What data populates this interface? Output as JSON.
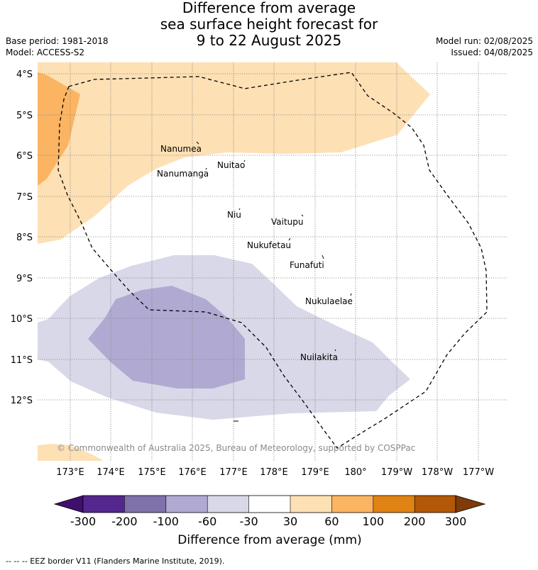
{
  "header": {
    "title_lines": [
      "Difference from average",
      "sea surface height forecast for",
      "9 to 22 August 2025"
    ],
    "base_period": "Base period: 1981-2018",
    "model": "Model: ACCESS-S2",
    "model_run": "Model run: 02/08/2025",
    "issued": "Issued: 04/08/2025"
  },
  "map": {
    "lat_labels": [
      "4°S",
      "5°S",
      "6°S",
      "7°S",
      "8°S",
      "9°S",
      "10°S",
      "11°S",
      "12°S"
    ],
    "lon_labels": [
      "173°E",
      "174°E",
      "175°E",
      "176°E",
      "177°E",
      "178°E",
      "179°E",
      "180°",
      "179°W",
      "178°W",
      "177°W"
    ],
    "islands": [
      "Nanumea",
      "Nuitao",
      "Nanumanga",
      "Niu",
      "Vaitupu",
      "Nukufetau",
      "Funafuti",
      "Nukulaelae",
      "Nuilakita"
    ],
    "copyright": "© Commonwealth of Australia 2025, Bureau of Meteorology, supported by COSPPac"
  },
  "legend": {
    "tick_labels": [
      "-300",
      "-200",
      "-100",
      "-60",
      "-30",
      "30",
      "60",
      "100",
      "200",
      "300"
    ],
    "colors": [
      "#3f0f6e",
      "#54278f",
      "#7f71aa",
      "#b0aad2",
      "#d8d8e8",
      "#ffffff",
      "#fde0b4",
      "#fbb462",
      "#e08214",
      "#b35806",
      "#7f3b08"
    ],
    "title": "Difference from average (mm)"
  },
  "footer": "--  --  -- EEZ border V11 (Flanders Marine Institute, 2019)."
}
